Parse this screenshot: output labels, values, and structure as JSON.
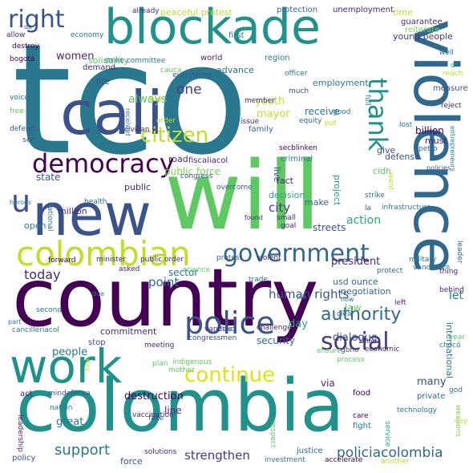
{
  "wordcloud": {
    "background": "#ffffff",
    "words": [
      {
        "text": "tco",
        "color": "#2a788e"
      },
      {
        "text": "will",
        "color": "#5ec962"
      },
      {
        "text": "new",
        "color": "#3b528b"
      },
      {
        "text": "cali",
        "color": "#3b528b"
      },
      {
        "text": "country",
        "color": "#440154"
      },
      {
        "text": "colombia",
        "color": "#21918c"
      },
      {
        "text": "violence",
        "color": "#31688e"
      },
      {
        "text": "blockade",
        "color": "#21918c"
      },
      {
        "text": "work",
        "color": "#21918c"
      },
      {
        "text": "colombian",
        "color": "#bddf26"
      },
      {
        "text": "government",
        "color": "#31688e"
      },
      {
        "text": "democracy",
        "color": "#440154"
      },
      {
        "text": "police",
        "color": "#3b528b"
      },
      {
        "text": "social",
        "color": "#443983"
      },
      {
        "text": "citizen",
        "color": "#bddf26"
      },
      {
        "text": "continue",
        "color": "#dde318"
      },
      {
        "text": "right",
        "color": "#3b528b"
      },
      {
        "text": "thank",
        "color": "#21918c"
      },
      {
        "text": "u",
        "color": "#3b528b"
      },
      {
        "text": "authority",
        "color": "#31688e"
      },
      {
        "text": "policiacolombia",
        "color": "#31688e"
      },
      {
        "text": "support",
        "color": "#2a788e"
      },
      {
        "text": "strengthen",
        "color": "#443983"
      },
      {
        "text": "human rights",
        "color": "#3b528b"
      },
      {
        "text": "one",
        "color": "#443983"
      },
      {
        "text": "always",
        "color": "#5ec962"
      },
      {
        "text": "women",
        "color": "#482878"
      },
      {
        "text": "young people",
        "color": "#443983"
      },
      {
        "text": "employment",
        "color": "#2a788e"
      },
      {
        "text": "mayor",
        "color": "#bddf26"
      },
      {
        "text": "youth",
        "color": "#bddf26"
      },
      {
        "text": "receive",
        "color": "#2a788e"
      },
      {
        "text": "public force",
        "color": "#7ad151"
      },
      {
        "text": "city",
        "color": "#443983"
      },
      {
        "text": "action",
        "color": "#22a884"
      },
      {
        "text": "president",
        "color": "#482878"
      },
      {
        "text": "today",
        "color": "#482878"
      },
      {
        "text": "point",
        "color": "#31688e"
      },
      {
        "text": "sector",
        "color": "#2a788e"
      },
      {
        "text": "law",
        "color": "#5ec962"
      },
      {
        "text": "let",
        "color": "#2a788e"
      },
      {
        "text": "day",
        "color": "#22a884"
      },
      {
        "text": "dialogue",
        "color": "#3b528b"
      },
      {
        "text": "people",
        "color": "#2a788e"
      },
      {
        "text": "commitment",
        "color": "#482878"
      },
      {
        "text": "security",
        "color": "#31688e"
      },
      {
        "text": "destruction",
        "color": "#440154"
      },
      {
        "text": "many",
        "color": "#3b528b"
      },
      {
        "text": "great",
        "color": "#2a788e"
      },
      {
        "text": "line",
        "color": "#482878"
      },
      {
        "text": "force",
        "color": "#3b528b"
      },
      {
        "text": "via",
        "color": "#482878"
      },
      {
        "text": "international",
        "color": "#2a788e"
      },
      {
        "text": "usd ounce",
        "color": "#31688e"
      },
      {
        "text": "negotiation",
        "color": "#31688e"
      },
      {
        "text": "state",
        "color": "#3b528b"
      },
      {
        "text": "public",
        "color": "#482878"
      },
      {
        "text": "million",
        "color": "#482878"
      },
      {
        "text": "open",
        "color": "#2a788e"
      },
      {
        "text": "make",
        "color": "#31688e"
      },
      {
        "text": "streets",
        "color": "#3b528b"
      },
      {
        "text": "fact",
        "color": "#482878"
      },
      {
        "text": "decision",
        "color": "#22a884"
      },
      {
        "text": "cidh",
        "color": "#5ec962"
      },
      {
        "text": "give",
        "color": "#3b528b"
      },
      {
        "text": "defense",
        "color": "#3b528b"
      },
      {
        "text": "billion",
        "color": "#440154"
      },
      {
        "text": "must",
        "color": "#482878"
      },
      {
        "text": "live",
        "color": "#3b528b"
      },
      {
        "text": "road",
        "color": "#482878"
      },
      {
        "text": "fiscaliacol",
        "color": "#482878"
      },
      {
        "text": "criminal",
        "color": "#2a788e"
      },
      {
        "text": "project",
        "color": "#22a884"
      },
      {
        "text": "peaceful protest",
        "color": "#bddf26"
      },
      {
        "text": "protection",
        "color": "#31688e"
      },
      {
        "text": "unemployment",
        "color": "#482878"
      },
      {
        "text": "time",
        "color": "#bddf26"
      },
      {
        "text": "guarantee",
        "color": "#482878"
      },
      {
        "text": "reiterate",
        "color": "#7ad151"
      },
      {
        "text": "solidarity",
        "color": "#5ec962"
      },
      {
        "text": "first",
        "color": "#2a788e"
      },
      {
        "text": "region",
        "color": "#2a788e"
      },
      {
        "text": "advance",
        "color": "#31688e"
      },
      {
        "text": "world",
        "color": "#482878"
      },
      {
        "text": "life",
        "color": "#3b528b"
      },
      {
        "text": "demand",
        "color": "#482878"
      },
      {
        "text": "already",
        "color": "#482878"
      },
      {
        "text": "economy",
        "color": "#2a788e"
      },
      {
        "text": "destroy",
        "color": "#440154"
      },
      {
        "text": "allow",
        "color": "#482878"
      },
      {
        "text": "bogotá",
        "color": "#440154"
      },
      {
        "text": "strike committee",
        "color": "#2a788e"
      },
      {
        "text": "officer",
        "color": "#2a788e"
      },
      {
        "text": "everything",
        "color": "#3b528b"
      },
      {
        "text": "much",
        "color": "#3b528b"
      },
      {
        "text": "well",
        "color": "#2a788e"
      },
      {
        "text": "measure",
        "color": "#3b528b"
      },
      {
        "text": "voice",
        "color": "#2a788e"
      },
      {
        "text": "free",
        "color": "#5ec962"
      },
      {
        "text": "defend",
        "color": "#3b528b"
      },
      {
        "text": "see",
        "color": "#3b528b"
      },
      {
        "text": "member",
        "color": "#482878"
      },
      {
        "text": "issue",
        "color": "#482878"
      },
      {
        "text": "family",
        "color": "#31688e"
      },
      {
        "text": "good",
        "color": "#2a788e"
      },
      {
        "text": "order",
        "color": "#bddf26"
      },
      {
        "text": "equity",
        "color": "#31688e"
      },
      {
        "text": "put",
        "color": "#bddf26"
      },
      {
        "text": "full",
        "color": "#21918c"
      },
      {
        "text": "reject",
        "color": "#482878"
      },
      {
        "text": "reach",
        "color": "#bddf26"
      },
      {
        "text": "dr",
        "color": "#21918c"
      },
      {
        "text": "lost",
        "color": "#2a788e"
      },
      {
        "text": "petro",
        "color": "#31688e"
      },
      {
        "text": "entrepreneurs",
        "color": "#2a788e"
      },
      {
        "text": "policies",
        "color": "#3b528b"
      },
      {
        "text": "civilian",
        "color": "#482878"
      },
      {
        "text": "congress",
        "color": "#3b528b"
      },
      {
        "text": "overcome",
        "color": "#31688e"
      },
      {
        "text": "secblinken",
        "color": "#440154"
      },
      {
        "text": "heroes",
        "color": "#2a788e"
      },
      {
        "text": "health",
        "color": "#31688e"
      },
      {
        "text": "national",
        "color": "#2a788e"
      },
      {
        "text": "found",
        "color": "#482878"
      },
      {
        "text": "small",
        "color": "#482878"
      },
      {
        "text": "goal",
        "color": "#482878"
      },
      {
        "text": "strike",
        "color": "#2a788e"
      },
      {
        "text": "infrastructure",
        "color": "#2a788e"
      },
      {
        "text": "want",
        "color": "#bddf26"
      },
      {
        "text": "la",
        "color": "#3b528b"
      },
      {
        "text": "minister",
        "color": "#482878"
      },
      {
        "text": "forward",
        "color": "#440154"
      },
      {
        "text": "public order",
        "color": "#482878"
      },
      {
        "text": "protest",
        "color": "#3b528b"
      },
      {
        "text": "violent",
        "color": "#482878"
      },
      {
        "text": "military",
        "color": "#2a788e"
      },
      {
        "text": "vandalism",
        "color": "#2a788e"
      },
      {
        "text": "leader",
        "color": "#31688e"
      },
      {
        "text": "asked",
        "color": "#482878"
      },
      {
        "text": "science",
        "color": "#5ec962"
      },
      {
        "text": "trade",
        "color": "#2a788e"
      },
      {
        "text": "protect",
        "color": "#31688e"
      },
      {
        "text": "thing",
        "color": "#482878"
      },
      {
        "text": "behind",
        "color": "#482878"
      },
      {
        "text": "left",
        "color": "#482878"
      },
      {
        "text": "job",
        "color": "#2a788e"
      },
      {
        "text": "clear",
        "color": "#2a788e"
      },
      {
        "text": "now",
        "color": "#2a788e"
      },
      {
        "text": "second",
        "color": "#2a788e"
      },
      {
        "text": "due",
        "color": "#2a788e"
      },
      {
        "text": "part",
        "color": "#2a788e"
      },
      {
        "text": "cancilleriacol",
        "color": "#2a788e"
      },
      {
        "text": "vandals",
        "color": "#482878"
      },
      {
        "text": "two",
        "color": "#31688e"
      },
      {
        "text": "challenge",
        "color": "#482878"
      },
      {
        "text": "killed",
        "color": "#482878"
      },
      {
        "text": "year",
        "color": "#5ec962"
      },
      {
        "text": "stop",
        "color": "#3b528b"
      },
      {
        "text": "meeting",
        "color": "#482878"
      },
      {
        "text": "congressmen",
        "color": "#3b528b"
      },
      {
        "text": "chocó",
        "color": "#2a788e"
      },
      {
        "text": "gbno",
        "color": "#3b528b"
      },
      {
        "text": "ensure",
        "color": "#5ec962"
      },
      {
        "text": "economic",
        "color": "#482878"
      },
      {
        "text": "act",
        "color": "#482878"
      },
      {
        "text": "mindefensa",
        "color": "#3b528b"
      },
      {
        "text": "process",
        "color": "#5ec962"
      },
      {
        "text": "food",
        "color": "#440154"
      },
      {
        "text": "private",
        "color": "#31688e"
      },
      {
        "text": "god",
        "color": "#2a788e"
      },
      {
        "text": "nation",
        "color": "#2a788e"
      },
      {
        "text": "mother",
        "color": "#5ec962"
      },
      {
        "text": "plan",
        "color": "#5ec962"
      },
      {
        "text": "indigenous",
        "color": "#5ec962"
      },
      {
        "text": "fake",
        "color": "#3b528b"
      },
      {
        "text": "care",
        "color": "#440154"
      },
      {
        "text": "technology",
        "color": "#2a788e"
      },
      {
        "text": "fight",
        "color": "#2a788e"
      },
      {
        "text": "service",
        "color": "#22a884"
      },
      {
        "text": "leadership",
        "color": "#482878"
      },
      {
        "text": "respect",
        "color": "#5ec962"
      },
      {
        "text": "justice",
        "color": "#31688e"
      },
      {
        "text": "investment",
        "color": "#2a788e"
      },
      {
        "text": "accelerate",
        "color": "#440154"
      },
      {
        "text": "another",
        "color": "#bddf26"
      },
      {
        "text": "solutions",
        "color": "#482878"
      },
      {
        "text": "vaccination",
        "color": "#482878"
      },
      {
        "text": "policy",
        "color": "#3b528b"
      },
      {
        "text": "weapons",
        "color": "#7ad151"
      },
      {
        "text": "way",
        "color": "#bddf26"
      },
      {
        "text": "joy",
        "color": "#bddf26"
      },
      {
        "text": "received",
        "color": "#2a788e"
      },
      {
        "text": "may",
        "color": "#bddf26"
      },
      {
        "text": "cauca",
        "color": "#5ec962"
      },
      {
        "text": "de",
        "color": "#3b528b"
      }
    ]
  }
}
